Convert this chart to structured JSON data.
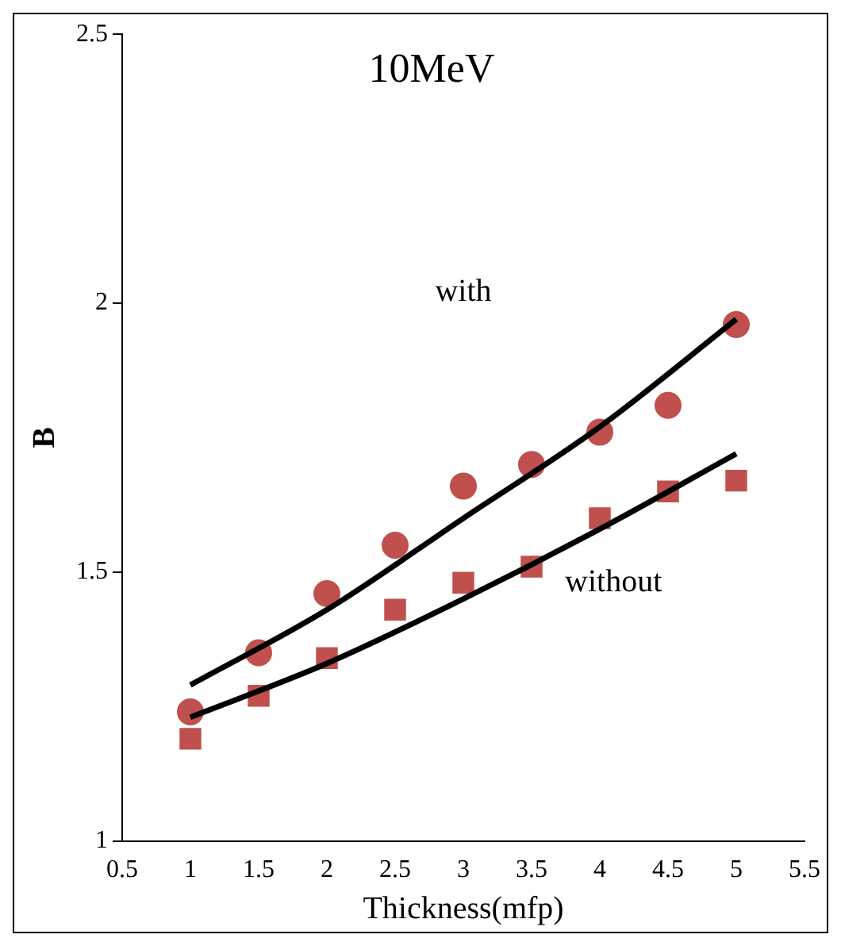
{
  "chart_data": {
    "type": "scatter",
    "title": "10MeV",
    "xlabel": "Thickness(mfp)",
    "ylabel": "B",
    "series": [
      {
        "marker": "circle",
        "color": "#c0504d",
        "x": [
          1,
          1.5,
          2,
          2.5,
          3,
          3.5,
          4,
          4.5,
          5
        ],
        "values": [
          1.24,
          1.35,
          1.46,
          1.55,
          1.66,
          1.7,
          1.76,
          1.81,
          1.96
        ]
      },
      {
        "marker": "square",
        "color": "#c0504d",
        "x": [
          1,
          1.5,
          2,
          2.5,
          3,
          3.5,
          4,
          4.5,
          5
        ],
        "values": [
          1.19,
          1.27,
          1.34,
          1.43,
          1.48,
          1.51,
          1.6,
          1.65,
          1.67
        ]
      },
      {
        "type": "line",
        "marker": "none",
        "color": "#000000",
        "x": [
          1,
          2,
          3,
          4,
          5
        ],
        "values": [
          1.29,
          1.43,
          1.6,
          1.77,
          1.97
        ]
      },
      {
        "type": "line",
        "marker": "none",
        "color": "#000000",
        "x": [
          1,
          2,
          3,
          4,
          5
        ],
        "values": [
          1.23,
          1.33,
          1.45,
          1.58,
          1.72
        ]
      }
    ],
    "annotations": [
      "with",
      "without"
    ],
    "xlim": [
      0.5,
      5.5
    ],
    "xticks": [
      0.5,
      1,
      1.5,
      2,
      2.5,
      3,
      3.5,
      4,
      4.5,
      5,
      5.5
    ],
    "ylim": [
      1,
      2.5
    ],
    "yticks": [
      1,
      1.5,
      2,
      2.5
    ],
    "grid": false,
    "legend": false
  }
}
